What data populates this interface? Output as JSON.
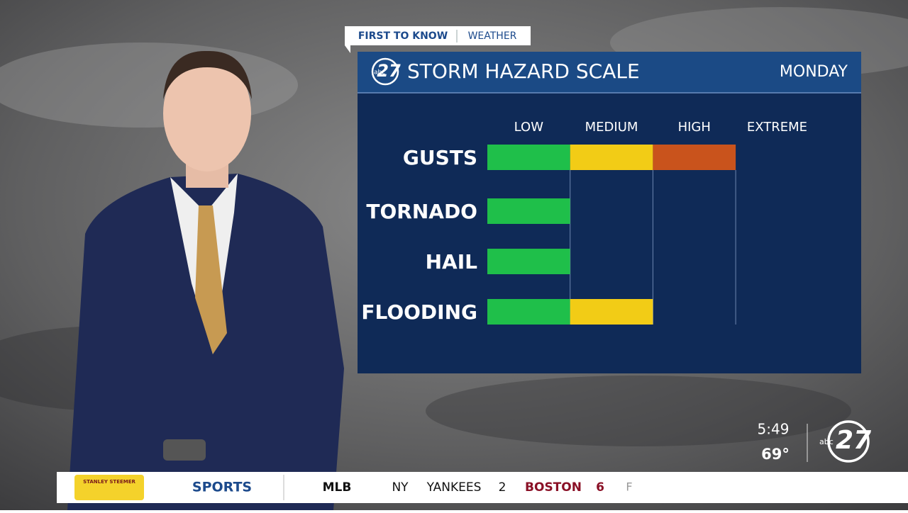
{
  "tag": {
    "brand": "FIRST TO KNOW",
    "section": "WEATHER"
  },
  "panel": {
    "logo_small": "abc",
    "logo_number": "27",
    "title": "STORM HAZARD SCALE",
    "day": "MONDAY",
    "levels": [
      "LOW",
      "MEDIUM",
      "HIGH",
      "EXTREME"
    ],
    "level_colors": [
      "#1fbf4a",
      "#f2cc16",
      "#c9531c",
      "#b0122a"
    ],
    "hazards": [
      {
        "name": "GUSTS",
        "level": 3
      },
      {
        "name": "TORNADO",
        "level": 1
      },
      {
        "name": "HAIL",
        "level": 1
      },
      {
        "name": "FLOODING",
        "level": 2
      }
    ]
  },
  "corner": {
    "time": "5:49",
    "temp": "69°",
    "logo_small": "abc",
    "logo_number": "27"
  },
  "ticker": {
    "sponsor": "STANLEY STEEMER",
    "section": "SPORTS",
    "league": "MLB",
    "away_city": "NY",
    "away_team": "YANKEES",
    "away_score": 2,
    "home_team": "BOSTON",
    "home_score": 6,
    "status": "F"
  }
}
